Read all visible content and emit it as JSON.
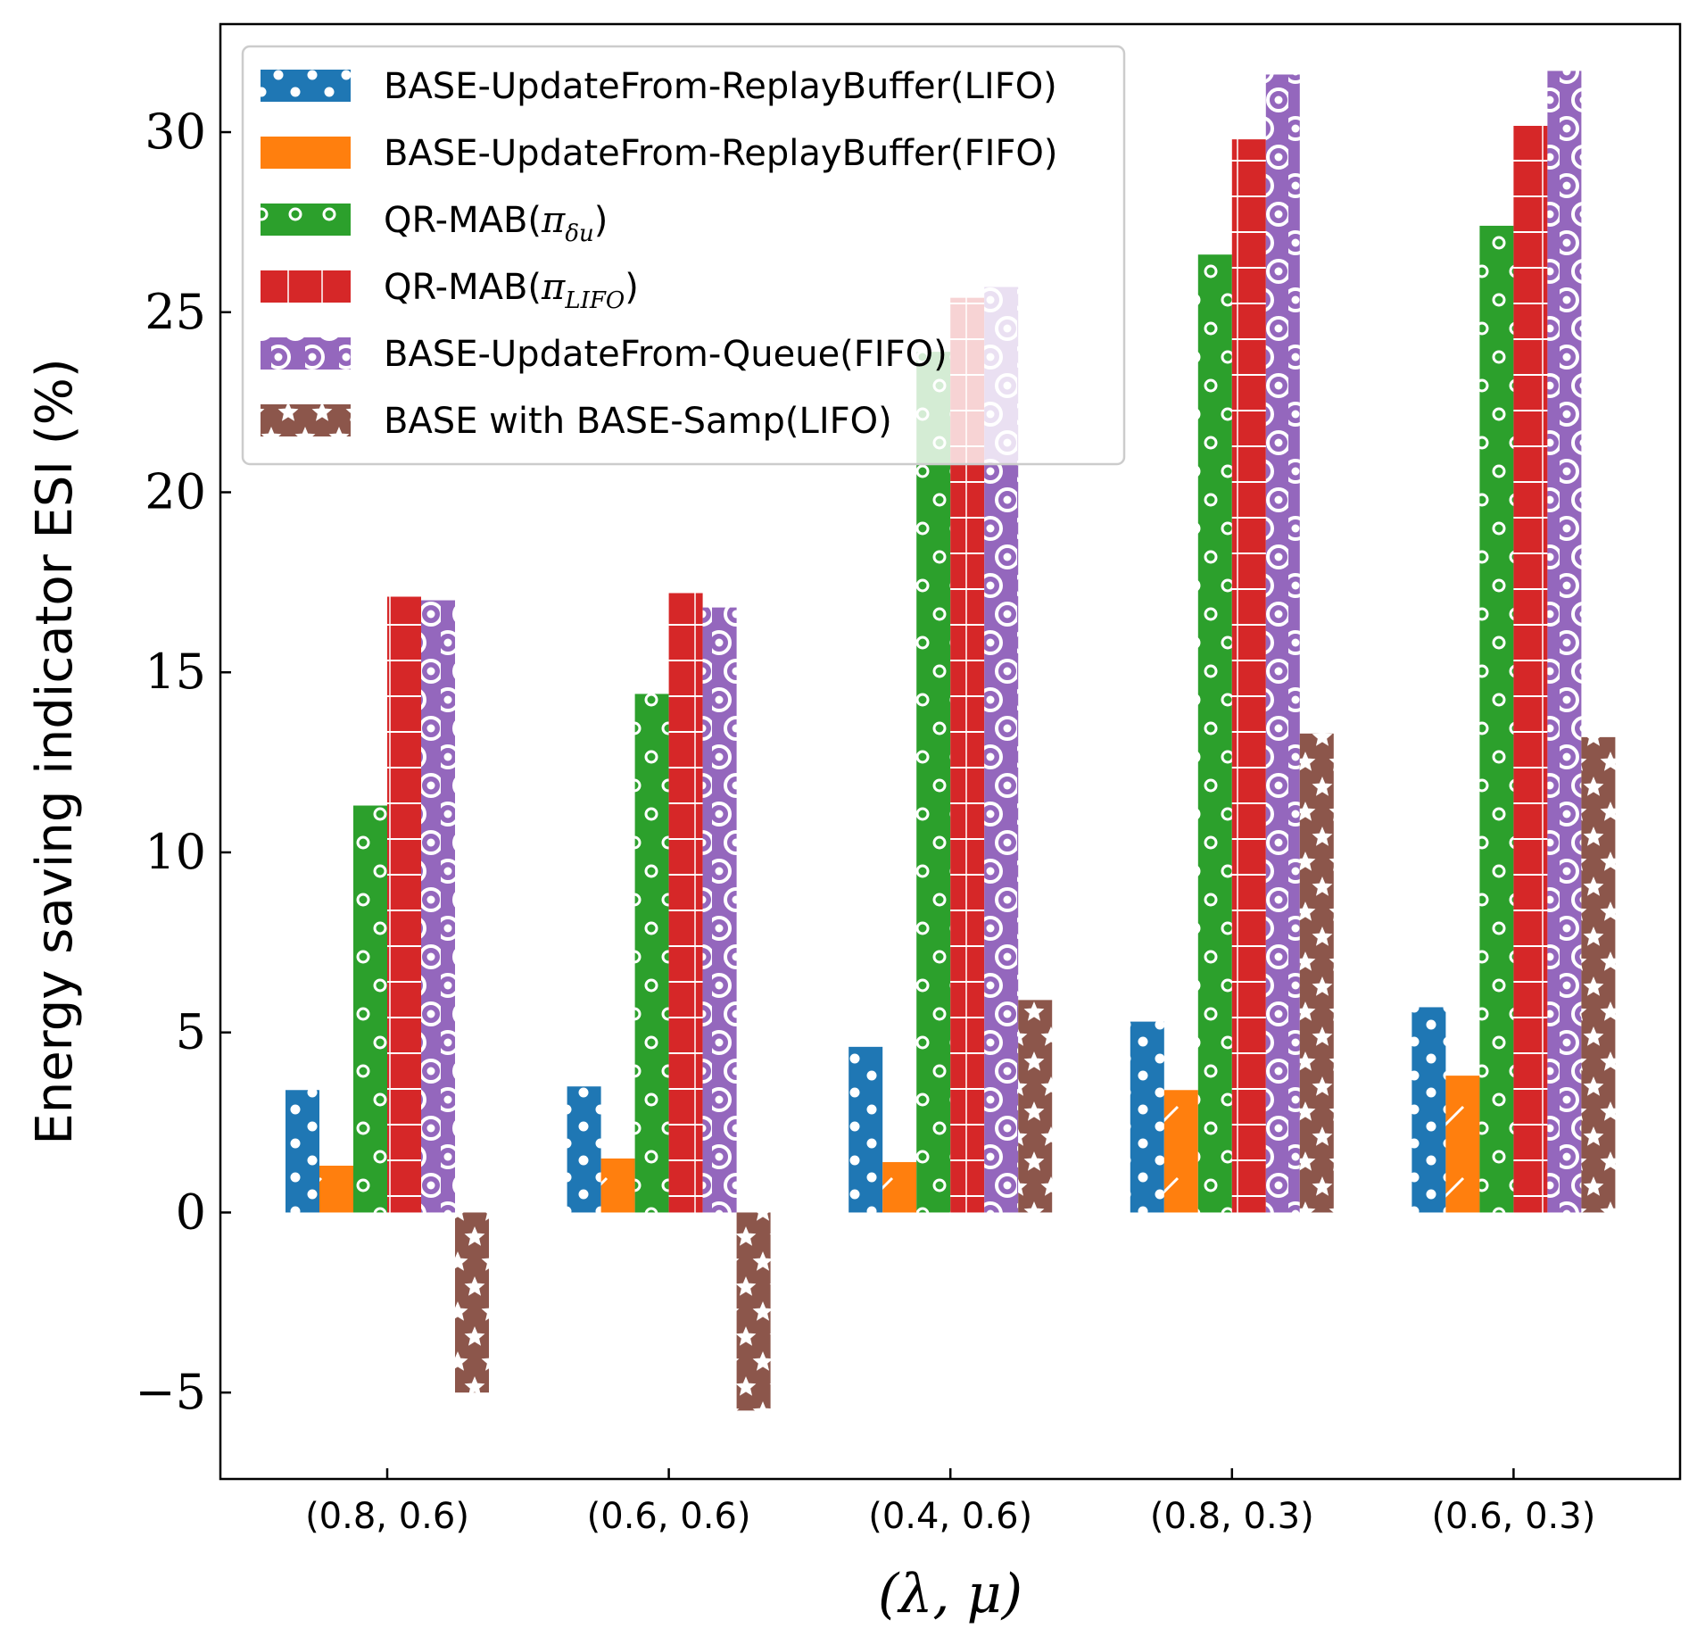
{
  "chart_data": {
    "type": "bar",
    "categories": [
      "(0.8, 0.6)",
      "(0.6, 0.6)",
      "(0.4, 0.6)",
      "(0.8, 0.3)",
      "(0.6, 0.3)"
    ],
    "ylabel": "Energy saving indicator ESI (%)",
    "xlabel": "(λ, μ)",
    "ylim": [
      -7.4,
      33
    ],
    "yticks": [
      -5,
      0,
      5,
      10,
      15,
      20,
      25,
      30
    ],
    "ytick_labels": [
      "−5",
      "0",
      "5",
      "10",
      "15",
      "20",
      "25",
      "30"
    ],
    "legend_position": "top-left",
    "grid": false,
    "series": [
      {
        "name": "BASE-UpdateFrom-ReplayBuffer(LIFO)",
        "color": "#1f77b4",
        "pattern": "dots",
        "values": [
          3.4,
          3.5,
          4.6,
          5.3,
          5.7
        ]
      },
      {
        "name": "BASE-UpdateFrom-ReplayBuffer(FIFO)",
        "color": "#ff7f0e",
        "pattern": "slash",
        "values": [
          1.3,
          1.5,
          1.4,
          3.4,
          3.8
        ]
      },
      {
        "name": "QR-MAB(π_δu)",
        "name_main": "QR-MAB(",
        "name_sym": "π",
        "name_sub": "δu",
        "name_end": ")",
        "color": "#2ca02c",
        "pattern": "circles",
        "values": [
          11.3,
          14.4,
          23.9,
          26.6,
          27.4
        ]
      },
      {
        "name": "QR-MAB(π_LIFO)",
        "name_main": "QR-MAB(",
        "name_sym": "π",
        "name_sub": "LIFO",
        "name_end": ")",
        "color": "#d62728",
        "pattern": "grid",
        "values": [
          17.1,
          17.2,
          25.4,
          29.8,
          30.2
        ]
      },
      {
        "name": "BASE-UpdateFrom-Queue(FIFO)",
        "color": "#9467bd",
        "pattern": "rings",
        "values": [
          17.0,
          16.8,
          25.7,
          31.6,
          31.7
        ]
      },
      {
        "name": "BASE with BASE-Samp(LIFO)",
        "color": "#8c564b",
        "pattern": "stars",
        "values": [
          -5.0,
          -5.5,
          5.9,
          13.3,
          13.2
        ]
      }
    ]
  }
}
